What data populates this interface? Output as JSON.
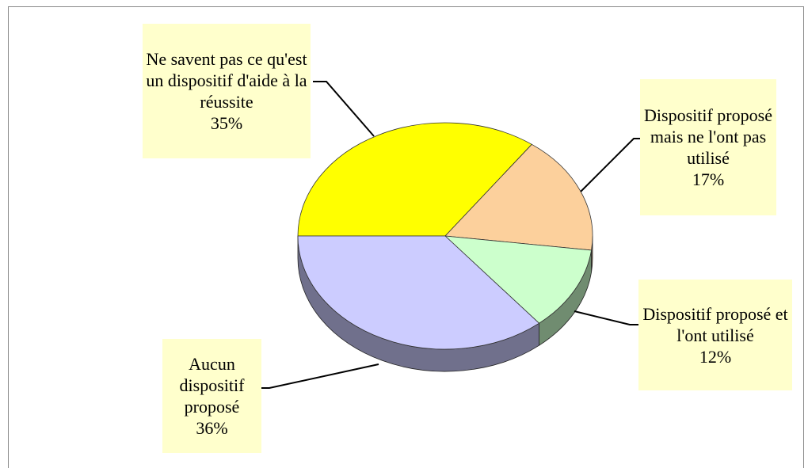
{
  "chart_data": {
    "type": "pie",
    "categories": [
      "Ne savent pas ce qu'est un dispositif d'aide à la réussite",
      "Dispositif proposé mais ne l'ont pas utilisé",
      "Dispositif proposé et l'ont utilisé",
      "Aucun dispositif proposé"
    ],
    "values": [
      35,
      17,
      12,
      36
    ],
    "value_labels": [
      "35%",
      "17%",
      "12%",
      "36%"
    ],
    "colors": [
      "#ffff00",
      "#fcd09c",
      "#ccffcc",
      "#ccccff"
    ]
  }
}
